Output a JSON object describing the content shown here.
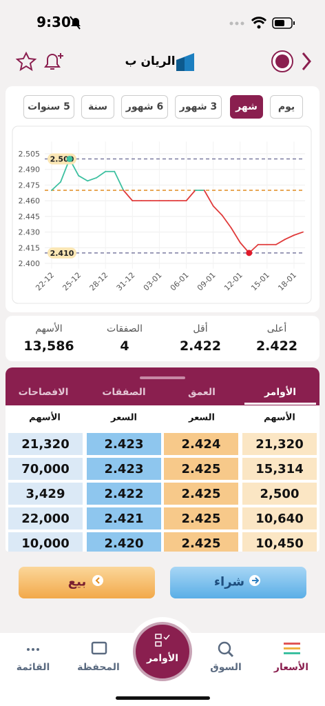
{
  "status_bar": {
    "time": "9:30"
  },
  "header": {
    "title": "الريان ب"
  },
  "periods": {
    "items": [
      "يوم",
      "شهر",
      "3 شهور",
      "6 شهور",
      "سنة",
      "5 سنوات"
    ],
    "selected": 1
  },
  "chart_data": {
    "type": "line",
    "categories": [
      "22-12",
      null,
      null,
      "25-12",
      null,
      null,
      "28-12",
      null,
      null,
      "31-12",
      null,
      null,
      "03-01",
      null,
      null,
      "06-01",
      null,
      null,
      "09-01",
      null,
      null,
      "12-01",
      null,
      null,
      "15-01",
      null,
      null,
      "18-01",
      null
    ],
    "values": [
      2.47,
      2.478,
      2.5,
      2.484,
      2.479,
      2.482,
      2.488,
      2.488,
      2.47,
      2.46,
      2.46,
      2.46,
      2.46,
      2.46,
      2.46,
      2.46,
      2.47,
      2.47,
      2.455,
      2.446,
      2.434,
      2.42,
      2.41,
      2.418,
      2.418,
      2.418,
      2.423,
      2.427,
      2.43
    ],
    "up_color": "#3cc0a0",
    "down_color": "#e03a3a",
    "reference": 2.47,
    "ylim": [
      2.395,
      2.51
    ],
    "yticks": [
      {
        "value": 2.4,
        "label": "2.400"
      },
      2.415,
      {
        "value": 2.43,
        "label": "2.430"
      },
      2.445,
      {
        "value": 2.46,
        "label": "2.460"
      },
      2.475,
      {
        "value": 2.49,
        "label": "2.490"
      },
      2.505
    ],
    "reference_lines": [
      {
        "value": 2.5,
        "label": "2.500",
        "color": "#7a7aa0"
      },
      {
        "value": 2.47,
        "color": "#e08a1e"
      },
      {
        "value": 2.41,
        "label": "2.410",
        "color": "#7a7aa0"
      }
    ],
    "markers": [
      {
        "index": 2,
        "color": "#3cc0a0"
      },
      {
        "index": 22,
        "color": "#e01a2a"
      }
    ],
    "grid": true
  },
  "stats": [
    {
      "label": "أعلى",
      "value": "2.422"
    },
    {
      "label": "أقل",
      "value": "2.422"
    },
    {
      "label": "الصفقات",
      "value": "4"
    },
    {
      "label": "الأسهم",
      "value": "13,586"
    }
  ],
  "tabs": {
    "items": [
      "الأوامر",
      "العمق",
      "الصفقات",
      "الافصاحات"
    ],
    "selected": 0
  },
  "order_book": {
    "columns": [
      "الأسهم",
      "السعر",
      "السعر",
      "الأسهم"
    ],
    "rows": [
      [
        "21,320",
        "2.424",
        "2.423",
        "21,320"
      ],
      [
        "15,314",
        "2.425",
        "2.423",
        "70,000"
      ],
      [
        "2,500",
        "2.425",
        "2.422",
        "3,429"
      ],
      [
        "10,640",
        "2.425",
        "2.421",
        "22,000"
      ],
      [
        "10,450",
        "2.425",
        "2.420",
        "10,000"
      ]
    ]
  },
  "buttons": {
    "buy": "شراء",
    "sell": "بيع"
  },
  "nav": {
    "items": [
      "الأسعار",
      "السوق",
      "الأوامر",
      "المحفظة",
      "القائمة"
    ],
    "selected": 0
  }
}
